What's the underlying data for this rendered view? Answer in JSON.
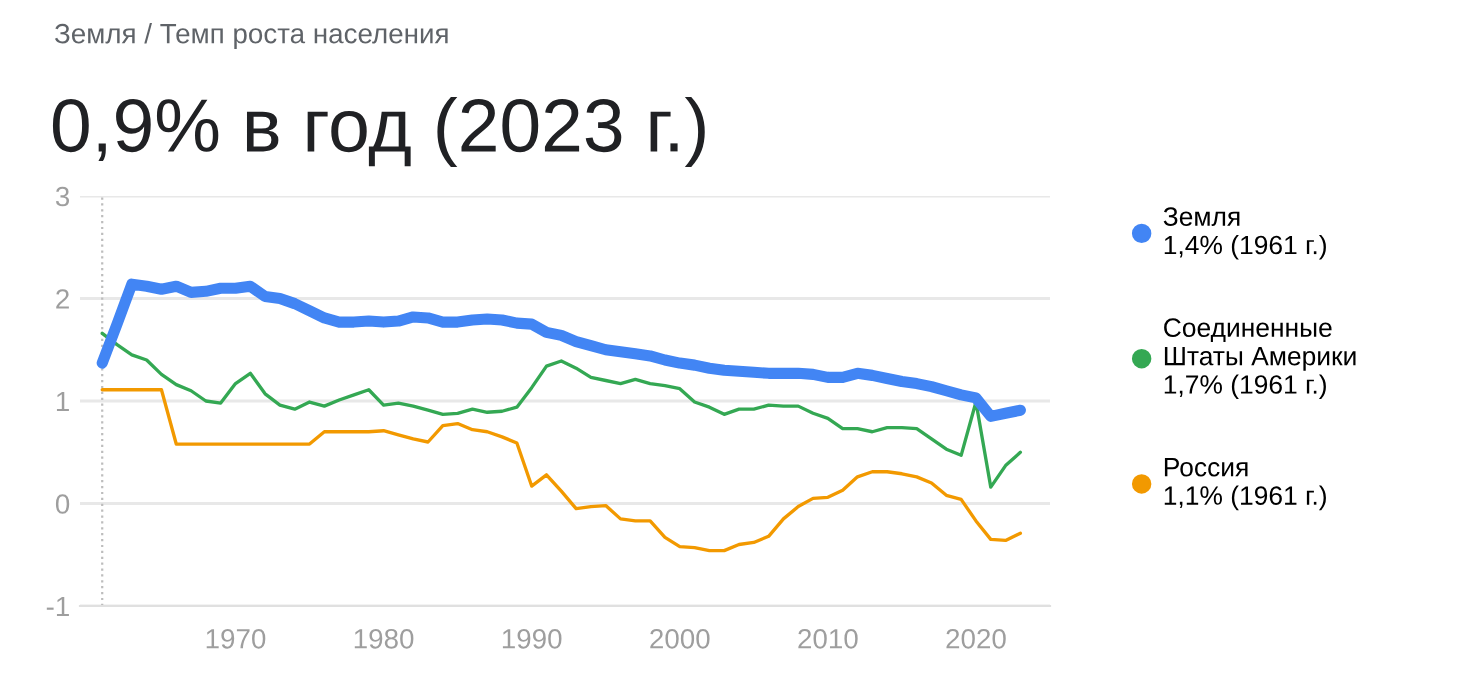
{
  "chart_data": {
    "type": "line",
    "subtitle": "Земля / Темп роста населения",
    "title": "0,9% в год (2023 г.)",
    "x": [
      1961,
      1962,
      1963,
      1964,
      1965,
      1966,
      1967,
      1968,
      1969,
      1970,
      1971,
      1972,
      1973,
      1974,
      1975,
      1976,
      1977,
      1978,
      1979,
      1980,
      1981,
      1982,
      1983,
      1984,
      1985,
      1986,
      1987,
      1988,
      1989,
      1990,
      1991,
      1992,
      1993,
      1994,
      1995,
      1996,
      1997,
      1998,
      1999,
      2000,
      2001,
      2002,
      2003,
      2004,
      2005,
      2006,
      2007,
      2008,
      2009,
      2010,
      2011,
      2012,
      2013,
      2014,
      2015,
      2016,
      2017,
      2018,
      2019,
      2020,
      2021,
      2022,
      2023
    ],
    "series": [
      {
        "name": "Земля\n1,4% (1961 г.)",
        "color": "#4285f4",
        "values": [
          1.37,
          1.75,
          2.14,
          2.12,
          2.09,
          2.12,
          2.06,
          2.07,
          2.1,
          2.1,
          2.12,
          2.02,
          2.0,
          1.95,
          1.88,
          1.81,
          1.77,
          1.77,
          1.78,
          1.77,
          1.78,
          1.82,
          1.81,
          1.77,
          1.77,
          1.79,
          1.8,
          1.79,
          1.76,
          1.75,
          1.67,
          1.64,
          1.58,
          1.54,
          1.5,
          1.48,
          1.46,
          1.44,
          1.4,
          1.37,
          1.35,
          1.32,
          1.3,
          1.29,
          1.28,
          1.27,
          1.27,
          1.27,
          1.26,
          1.23,
          1.23,
          1.27,
          1.25,
          1.22,
          1.19,
          1.17,
          1.14,
          1.1,
          1.06,
          1.03,
          0.85,
          0.88,
          0.91
        ]
      },
      {
        "name": "Соединенные\nШтаты Америки\n1,7% (1961 г.)",
        "color": "#34a853",
        "values": [
          1.66,
          1.55,
          1.45,
          1.4,
          1.26,
          1.16,
          1.1,
          1.0,
          0.98,
          1.17,
          1.27,
          1.07,
          0.96,
          0.92,
          0.99,
          0.95,
          1.01,
          1.06,
          1.11,
          0.96,
          0.98,
          0.95,
          0.91,
          0.87,
          0.88,
          0.92,
          0.89,
          0.9,
          0.94,
          1.13,
          1.34,
          1.39,
          1.32,
          1.23,
          1.2,
          1.17,
          1.21,
          1.17,
          1.15,
          1.12,
          0.99,
          0.94,
          0.87,
          0.92,
          0.92,
          0.96,
          0.95,
          0.95,
          0.88,
          0.83,
          0.73,
          0.73,
          0.7,
          0.74,
          0.74,
          0.73,
          0.63,
          0.53,
          0.47,
          0.99,
          0.16,
          0.37,
          0.5
        ]
      },
      {
        "name": "Россия\n1,1% (1961 г.)",
        "color": "#f29900",
        "values": [
          1.11,
          1.11,
          1.11,
          1.11,
          1.11,
          0.58,
          0.58,
          0.58,
          0.58,
          0.58,
          0.58,
          0.58,
          0.58,
          0.58,
          0.58,
          0.7,
          0.7,
          0.7,
          0.7,
          0.71,
          0.67,
          0.63,
          0.6,
          0.76,
          0.78,
          0.72,
          0.7,
          0.65,
          0.59,
          0.17,
          0.28,
          0.12,
          -0.05,
          -0.03,
          -0.02,
          -0.15,
          -0.17,
          -0.17,
          -0.33,
          -0.42,
          -0.43,
          -0.46,
          -0.46,
          -0.4,
          -0.38,
          -0.32,
          -0.15,
          -0.03,
          0.05,
          0.06,
          0.13,
          0.26,
          0.31,
          0.31,
          0.29,
          0.26,
          0.2,
          0.08,
          0.04,
          -0.17,
          -0.35,
          -0.36,
          -0.29
        ]
      }
    ],
    "xlim": [
      1959.5,
      2025
    ],
    "xticks": [
      1970,
      1980,
      1990,
      2000,
      2010,
      2020
    ],
    "ylim": [
      -1,
      3
    ],
    "yticks": [
      -1,
      0,
      1,
      2,
      3
    ],
    "grid": "y",
    "legend": "right",
    "ref_lines": [
      {
        "axis": "x",
        "value": 1961,
        "color": "#bdbdbd",
        "line_style": "dotted"
      }
    ]
  }
}
